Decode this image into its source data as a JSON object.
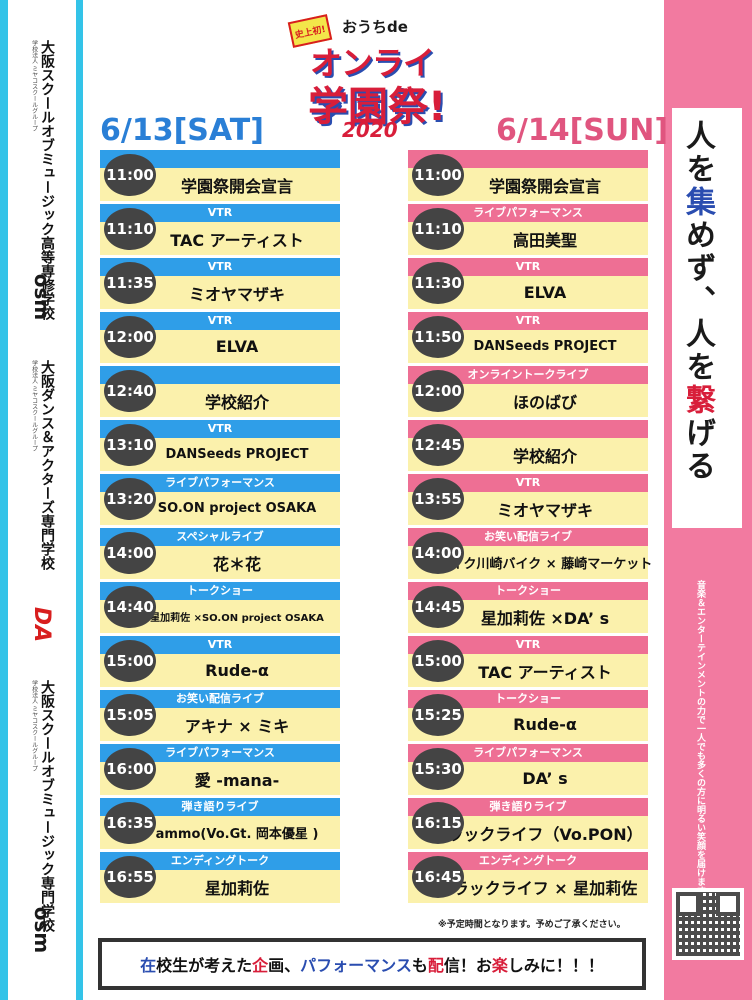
{
  "header": {
    "badge": "史上初!",
    "ouchi": "おうちde",
    "line1": "オンライン",
    "line2": "学園祭!",
    "year": "2020"
  },
  "left_schools": [
    {
      "logo": "osm",
      "sub": "学校法人 ミヤコスクールグループ",
      "name": "大阪スクールオブミュージック高等専修学校"
    },
    {
      "logo": "DA",
      "sub": "学校法人 ミヤコスクールグループ",
      "name": "大阪ダンス＆アクターズ専門学校"
    },
    {
      "logo": "osm",
      "sub": "学校法人 ミヤコスクールグループ",
      "name": "大阪スクールオブミュージック専門学校"
    }
  ],
  "slogan": {
    "p1": "人を",
    "p2": "集",
    "p3": "めず、人を",
    "p4": "繋",
    "p5": "げる"
  },
  "right_sub": "音楽＆エンターテインメントの力で一人でも多くの方に明るい笑顔を届けます！",
  "days": {
    "sat": "6/13[SAT]",
    "sun": "6/14[SUN]"
  },
  "sat": [
    {
      "time": "11:00",
      "cat": "",
      "title": "学園祭開会宣言"
    },
    {
      "time": "11:10",
      "cat": "VTR",
      "title": "TAC アーティスト"
    },
    {
      "time": "11:35",
      "cat": "VTR",
      "title": "ミオヤマザキ"
    },
    {
      "time": "12:00",
      "cat": "VTR",
      "title": "ELVA"
    },
    {
      "time": "12:40",
      "cat": "",
      "title": "学校紹介"
    },
    {
      "time": "13:10",
      "cat": "VTR",
      "title": "DANSeeds PROJECT"
    },
    {
      "time": "13:20",
      "cat": "ライブパフォーマンス",
      "title": "SO.ON project OSAKA"
    },
    {
      "time": "14:00",
      "cat": "スペシャルライブ",
      "title": "花＊花"
    },
    {
      "time": "14:40",
      "cat": "トークショー",
      "title": "星加莉佐 ×SO.ON project OSAKA"
    },
    {
      "time": "15:00",
      "cat": "VTR",
      "title": "Rude-α"
    },
    {
      "time": "15:05",
      "cat": "お笑い配信ライブ",
      "title": "アキナ × ミキ"
    },
    {
      "time": "16:00",
      "cat": "ライブパフォーマンス",
      "title": "愛 -mana-"
    },
    {
      "time": "16:35",
      "cat": "弾き語りライブ",
      "title": "ammo(Vo.Gt. 岡本優星 )"
    },
    {
      "time": "16:55",
      "cat": "エンディングトーク",
      "title": "星加莉佐"
    }
  ],
  "sun": [
    {
      "time": "11:00",
      "cat": "",
      "title": "学園祭開会宣言"
    },
    {
      "time": "11:10",
      "cat": "ライブパフォーマンス",
      "title": "高田美聖"
    },
    {
      "time": "11:30",
      "cat": "VTR",
      "title": "ELVA"
    },
    {
      "time": "11:50",
      "cat": "VTR",
      "title": "DANSeeds PROJECT"
    },
    {
      "time": "12:00",
      "cat": "オンライントークライブ",
      "title": "ほのばび"
    },
    {
      "time": "12:45",
      "cat": "",
      "title": "学校紹介"
    },
    {
      "time": "13:55",
      "cat": "VTR",
      "title": "ミオヤマザキ"
    },
    {
      "time": "14:00",
      "cat": "お笑い配信ライブ",
      "title": "バイク川崎バイク × 藤崎マーケット"
    },
    {
      "time": "14:45",
      "cat": "トークショー",
      "title": "星加莉佐 ×DA’ s"
    },
    {
      "time": "15:00",
      "cat": "VTR",
      "title": "TAC アーティスト"
    },
    {
      "time": "15:25",
      "cat": "トークショー",
      "title": "Rude-α"
    },
    {
      "time": "15:30",
      "cat": "ライブパフォーマンス",
      "title": "DA’ s"
    },
    {
      "time": "16:15",
      "cat": "弾き語りライブ",
      "title": "ラックライフ（Vo.PON）"
    },
    {
      "time": "16:45",
      "cat": "エンディングトーク",
      "title": "ラックライフ × 星加莉佐"
    }
  ],
  "note": "※予定時間となります。予めご了承ください。",
  "banner": {
    "a": "在",
    "b": "校生が考えた",
    "c": "企",
    "d": "画、",
    "e": "パフォーマンス",
    "f": "も",
    "g": "配",
    "h": "信！お",
    "i": "楽",
    "j": "しみに！！！"
  },
  "colors": {
    "sat": "#2f9ee8",
    "sun": "#ee6f94",
    "cell": "#fbf1ac",
    "time": "#444444"
  }
}
